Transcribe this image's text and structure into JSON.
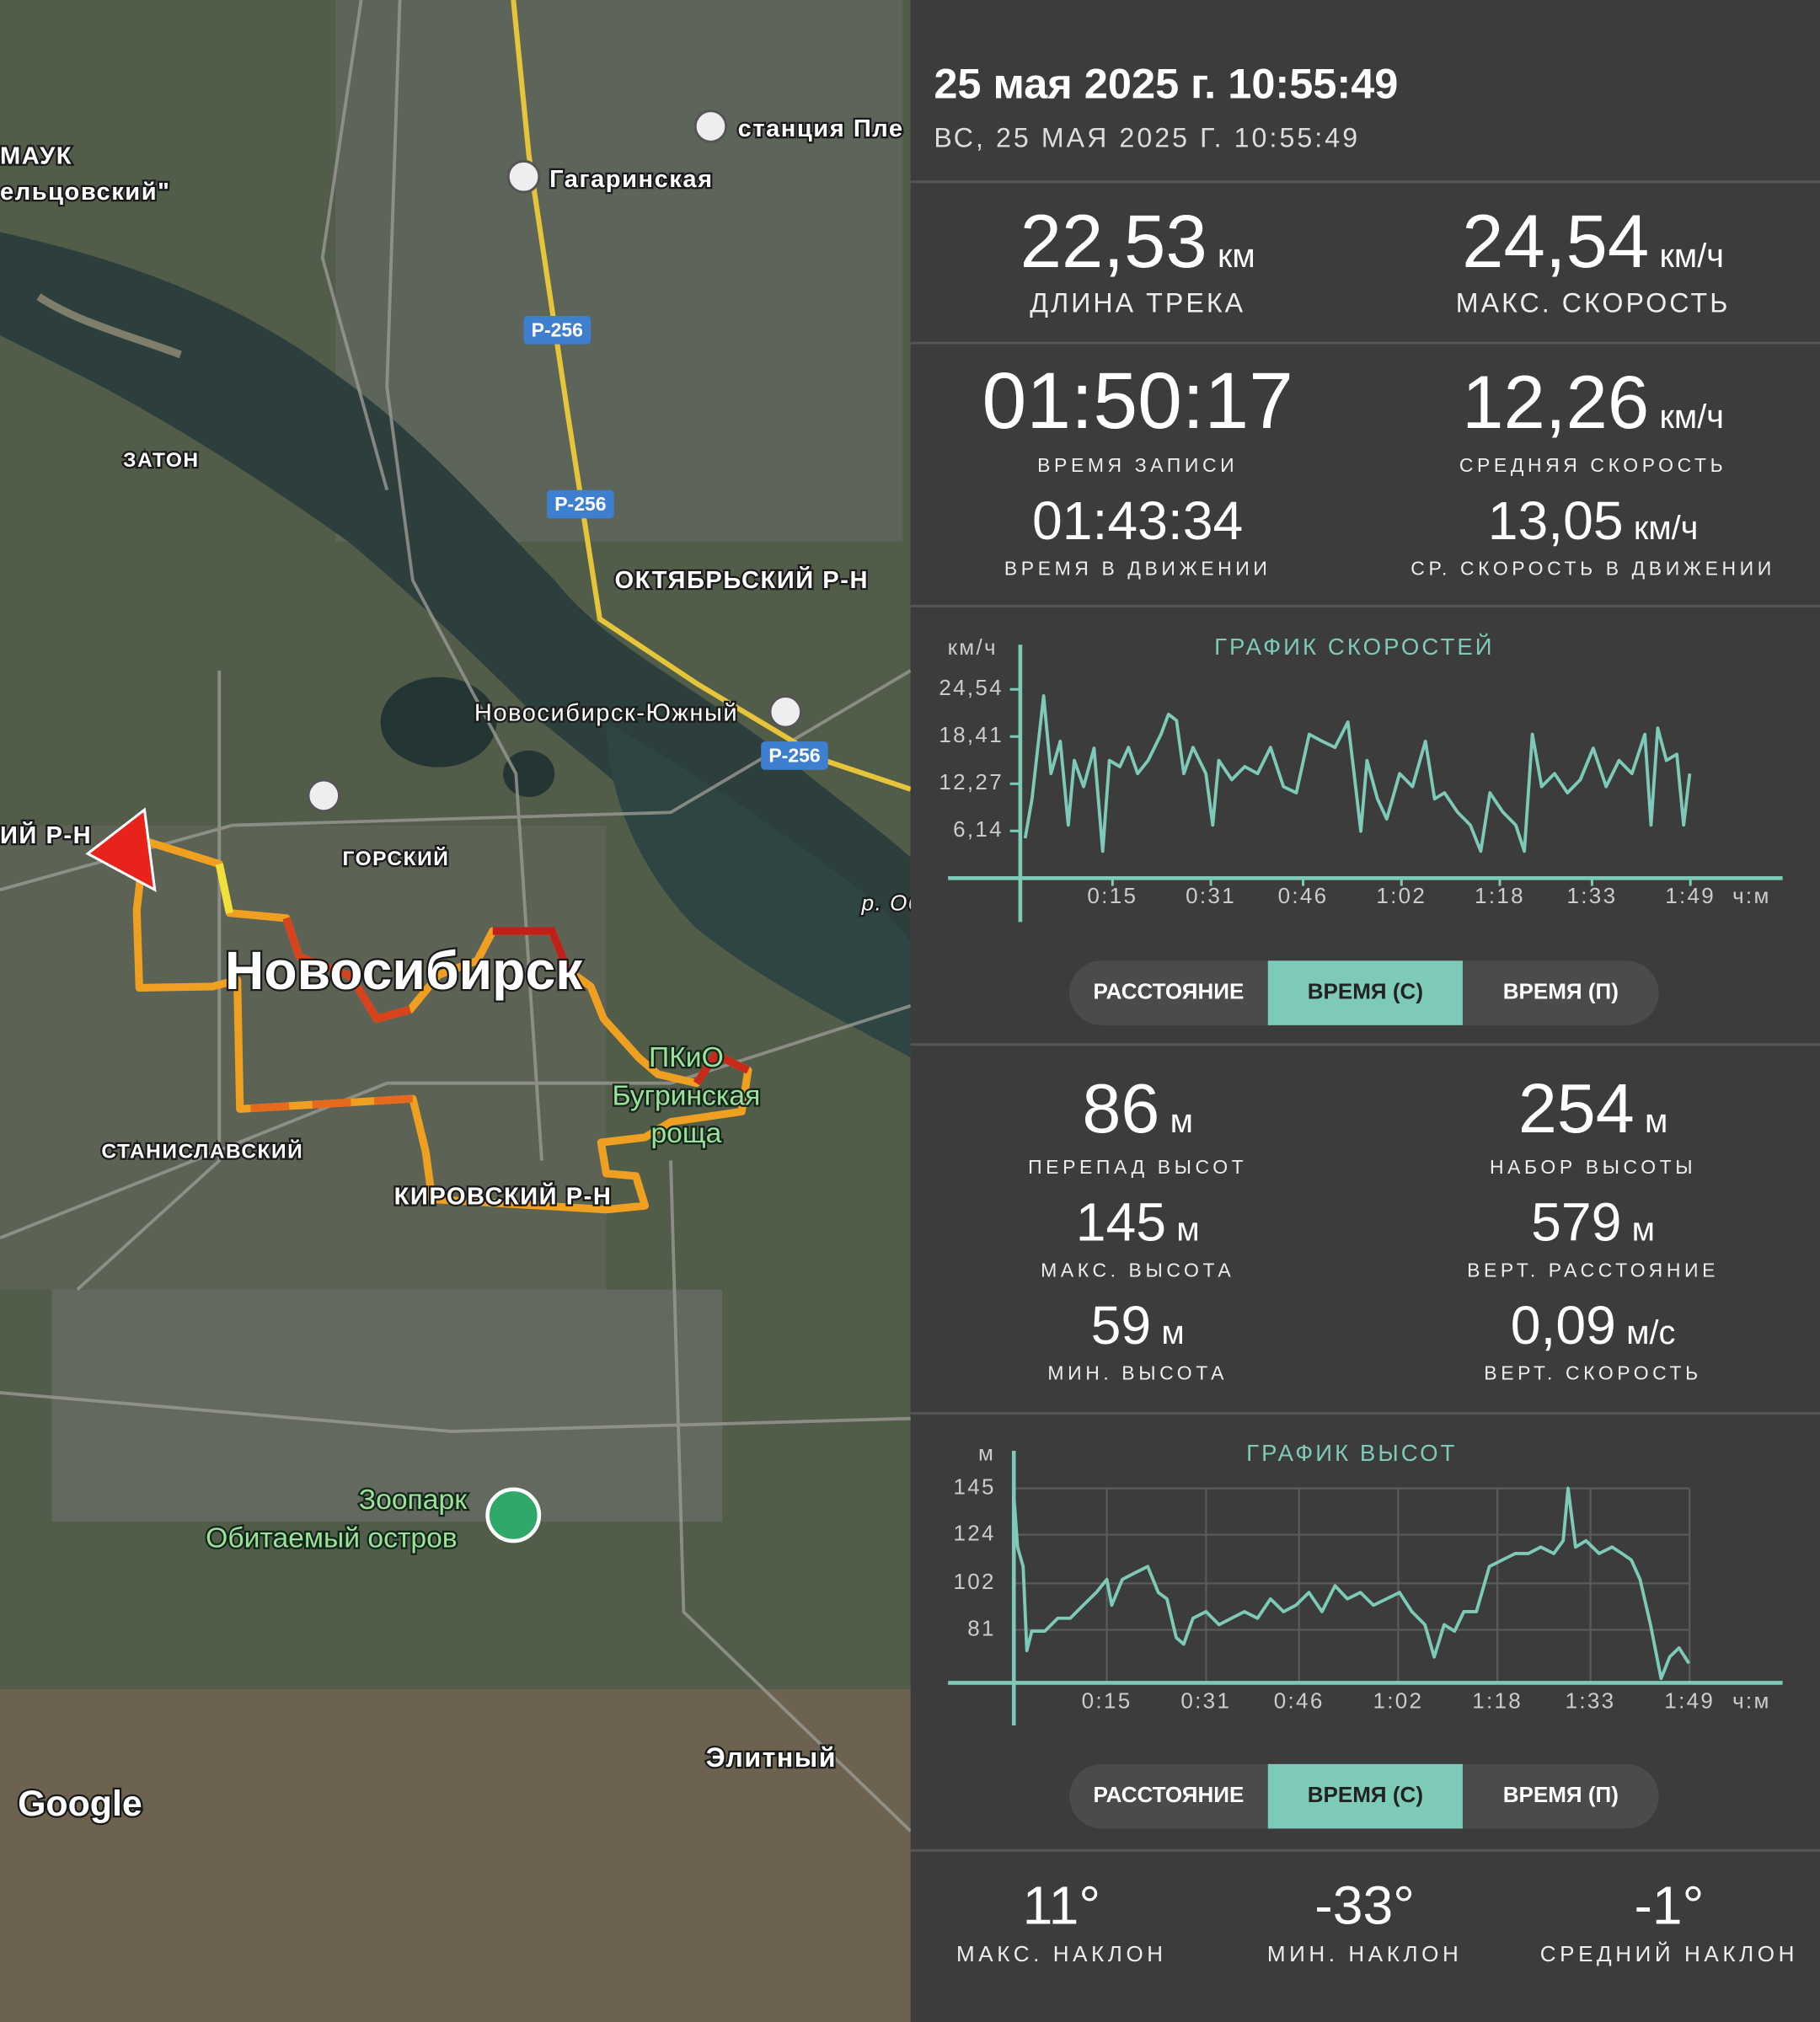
{
  "map": {
    "labels": [
      "МАУК",
      "ельцовский\"",
      "станция Пле",
      "Гагаринская",
      "Р-256",
      "Р-256",
      "Р-256",
      "ЗАТОН",
      "ОКТЯБРЬСКИЙ Р-Н",
      "Новосибирск-Южный",
      "ИЙ Р-Н",
      "ГОРСКИЙ",
      "Новосибирск",
      "р. Об",
      "ПКиО",
      "Бугринская",
      "роща",
      "СТАНИСЛАВСКИЙ",
      "КИРОВСКИЙ Р-Н",
      "Зоопарк",
      "Обитаемый остров",
      "Элитный",
      "Google"
    ]
  },
  "header": {
    "title": "25 мая 2025 г. 10:55:49",
    "subtitle": "ВС, 25 МАЯ 2025 Г. 10:55:49"
  },
  "stats": [
    {
      "value": "22,53",
      "unit": "км",
      "label": "ДЛИНА ТРЕКА"
    },
    {
      "value": "24,54",
      "unit": "км/ч",
      "label": "МАКС. СКОРОСТЬ"
    },
    {
      "value": "01:50:17",
      "label": "ВРЕМЯ ЗАПИСИ"
    },
    {
      "value": "12,26",
      "unit": "км/ч",
      "label": "СРЕДНЯЯ СКОРОСТЬ"
    },
    {
      "value": "01:43:34",
      "label": "ВРЕМЯ В ДВИЖЕНИИ"
    },
    {
      "value": "13,05",
      "unit": "км/ч",
      "label": "СР. СКОРОСТЬ В ДВИЖЕНИИ"
    },
    {
      "value": "86",
      "unit": "м",
      "label": "ПЕРЕПАД ВЫСОТ"
    },
    {
      "value": "254",
      "unit": "м",
      "label": "НАБОР ВЫСОТЫ"
    },
    {
      "value": "145",
      "unit": "м",
      "label": "МАКС. ВЫСОТА"
    },
    {
      "value": "579",
      "unit": "м",
      "label": "ВЕРТ. РАССТОЯНИЕ"
    },
    {
      "value": "59",
      "unit": "м",
      "label": "МИН. ВЫСОТА"
    },
    {
      "value": "0,09",
      "unit": "м/с",
      "label": "ВЕРТ. СКОРОСТЬ"
    },
    {
      "value": "11°",
      "label": "МАКС. НАКЛОН"
    },
    {
      "value": "-33°",
      "label": "МИН. НАКЛОН"
    },
    {
      "value": "-1°",
      "label": "СРЕДНИЙ НАКЛОН"
    }
  ],
  "chart_data": [
    {
      "type": "line",
      "title": "ГРАФИК СКОРОСТЕЙ",
      "y_label": "км/ч",
      "x_label": "ч:м",
      "color": "#7ecab8",
      "grid": false,
      "x": [
        0.8,
        1.9,
        3.8,
        5.0,
        6.5,
        7.8,
        8.8,
        10.3,
        12.0,
        13.4,
        14.5,
        16.2,
        17.6,
        19.1,
        20.8,
        22.9,
        24.1,
        25.4,
        26.6,
        28.1,
        30.2,
        31.3,
        32.3,
        34.4,
        36.5,
        38.6,
        40.7,
        42.8,
        44.9,
        47.0,
        49.1,
        51.2,
        53.3,
        54.3,
        55.4,
        56.4,
        58.1,
        59.6,
        61.7,
        63.8,
        65.9,
        67.4,
        69.0,
        71.1,
        73.2,
        74.9,
        76.4,
        78.5,
        80.6,
        82.0,
        83.3,
        84.8,
        86.9,
        89.0,
        91.1,
        93.2,
        95.3,
        97.4,
        99.5,
        101.6,
        102.6,
        103.7,
        105.1,
        106.8,
        107.9,
        108.9
      ],
      "values": [
        5.2,
        10.3,
        23.7,
        13.6,
        17.8,
        6.9,
        15.3,
        11.9,
        16.9,
        3.5,
        15.3,
        14.5,
        17.0,
        13.6,
        15.3,
        18.7,
        21.3,
        20.5,
        13.6,
        17.0,
        13.6,
        6.9,
        15.3,
        12.8,
        14.5,
        13.6,
        17.0,
        11.9,
        11.1,
        18.7,
        17.8,
        17.0,
        20.3,
        13.6,
        6.1,
        15.3,
        10.3,
        7.7,
        13.6,
        11.9,
        17.8,
        10.3,
        11.1,
        8.6,
        6.9,
        3.5,
        11.1,
        8.6,
        6.9,
        3.5,
        18.7,
        11.9,
        13.6,
        11.1,
        12.8,
        16.9,
        11.9,
        15.3,
        13.6,
        18.7,
        6.9,
        19.5,
        15.3,
        16.1,
        6.9,
        13.6
      ],
      "xlim": [
        0,
        124
      ],
      "ylim": [
        0,
        30
      ],
      "xticks": [
        {
          "value": 15,
          "label": "0:15"
        },
        {
          "value": 31,
          "label": "0:31"
        },
        {
          "value": 46,
          "label": "0:46"
        },
        {
          "value": 62,
          "label": "1:02"
        },
        {
          "value": 78,
          "label": "1:18"
        },
        {
          "value": 93,
          "label": "1:33"
        },
        {
          "value": 109,
          "label": "1:49"
        }
      ],
      "yticks": [
        {
          "value": 6.14,
          "label": "6,14"
        },
        {
          "value": 12.27,
          "label": "12,27"
        },
        {
          "value": 18.41,
          "label": "18,41"
        },
        {
          "value": 24.54,
          "label": "24,54"
        }
      ],
      "tabs": [
        "РАССТОЯНИЕ",
        "ВРЕМЯ (С)",
        "ВРЕМЯ (П)"
      ],
      "active_tab": 1
    },
    {
      "type": "line",
      "title": "ГРАФИК ВЫСОТ",
      "y_label": "м",
      "x_label": "ч:м",
      "color": "#7ecab8",
      "grid": true,
      "x": [
        0,
        0.6,
        1.5,
        2.1,
        2.9,
        5.0,
        7.1,
        9.1,
        11.2,
        13.3,
        15.0,
        15.8,
        17.5,
        19.5,
        21.6,
        23.3,
        24.7,
        26.2,
        27.4,
        28.9,
        31.0,
        33.1,
        35.1,
        37.2,
        39.3,
        41.4,
        43.5,
        45.5,
        47.6,
        49.7,
        51.8,
        53.8,
        55.9,
        58.0,
        60.1,
        62.2,
        64.2,
        66.3,
        67.8,
        69.4,
        71.1,
        72.6,
        74.6,
        76.7,
        78.8,
        80.9,
        83.0,
        85.0,
        87.1,
        88.6,
        89.4,
        90.6,
        92.3,
        94.4,
        96.5,
        98.1,
        99.6,
        101.0,
        102.7,
        104.4,
        105.8,
        107.3,
        108.9
      ],
      "values": [
        141.8,
        118.4,
        109.6,
        71.6,
        80.4,
        80.4,
        86.2,
        86.2,
        92.1,
        97.9,
        103.8,
        92.1,
        103.8,
        106.7,
        109.6,
        97.9,
        95.0,
        77.5,
        74.5,
        86.2,
        89.2,
        83.3,
        86.2,
        89.2,
        86.2,
        95.0,
        89.2,
        92.1,
        97.9,
        89.2,
        100.9,
        95.0,
        97.9,
        92.1,
        95.0,
        97.9,
        89.2,
        83.3,
        68.7,
        83.3,
        80.4,
        89.2,
        89.2,
        109.6,
        112.6,
        115.5,
        115.5,
        118.4,
        115.5,
        121.3,
        145,
        118.4,
        121.3,
        115.5,
        118.4,
        115.5,
        112.6,
        103.8,
        83.3,
        59,
        68.7,
        72.8,
        65.8
      ],
      "xlim": [
        0,
        124
      ],
      "ylim": [
        57,
        162
      ],
      "xticks": [
        {
          "value": 15,
          "label": "0:15"
        },
        {
          "value": 31,
          "label": "0:31"
        },
        {
          "value": 46,
          "label": "0:46"
        },
        {
          "value": 62,
          "label": "1:02"
        },
        {
          "value": 78,
          "label": "1:18"
        },
        {
          "value": 93,
          "label": "1:33"
        },
        {
          "value": 109,
          "label": "1:49"
        }
      ],
      "yticks": [
        81,
        102,
        124,
        145
      ],
      "tabs": [
        "РАССТОЯНИЕ",
        "ВРЕМЯ (С)",
        "ВРЕМЯ (П)"
      ],
      "active_tab": 1
    }
  ]
}
